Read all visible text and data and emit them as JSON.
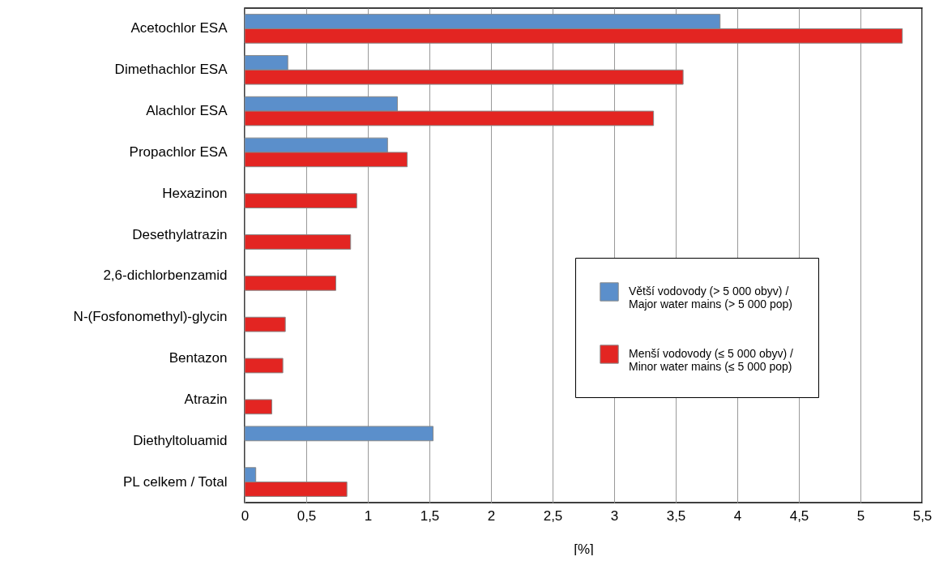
{
  "chart_data": {
    "type": "bar",
    "orientation": "horizontal",
    "xlabel": "[%]",
    "categories": [
      "Acetochlor ESA",
      "Dimethachlor ESA",
      "Alachlor ESA",
      "Propachlor ESA",
      "Hexazinon",
      "Desethylatrazin",
      "2,6-dichlorbenzamid",
      "N-(Fosfonomethyl)-glycin",
      "Bentazon",
      "Atrazin",
      "Diethyltoluamid",
      "PL celkem / Total"
    ],
    "series": [
      {
        "name": "Větší vodovody (> 5 000 obyv) / Major water mains (> 5 000 pop)",
        "color": "#5b8fcb",
        "values": [
          3.86,
          0.35,
          1.24,
          1.16,
          null,
          null,
          null,
          null,
          null,
          null,
          1.53,
          0.09
        ]
      },
      {
        "name": "Menší vodovody (≤ 5 000 obyv) / Minor water mains (≤ 5 000 pop)",
        "color": "#e32522",
        "values": [
          5.34,
          3.56,
          3.32,
          1.32,
          0.91,
          0.86,
          0.74,
          0.33,
          0.31,
          0.22,
          null,
          0.83
        ]
      }
    ],
    "xlim": [
      0,
      5.5
    ],
    "xticks": [
      0,
      {
        "value": 0.5,
        "label": "0,5"
      },
      1,
      {
        "value": 1.5,
        "label": "1,5"
      },
      2,
      {
        "value": 2.5,
        "label": "2,5"
      },
      3,
      {
        "value": 3.5,
        "label": "3,5"
      },
      4,
      {
        "value": 4.5,
        "label": "4,5"
      },
      5,
      {
        "value": 5.5,
        "label": "5,5"
      }
    ],
    "grid": "x",
    "legend": "right"
  }
}
